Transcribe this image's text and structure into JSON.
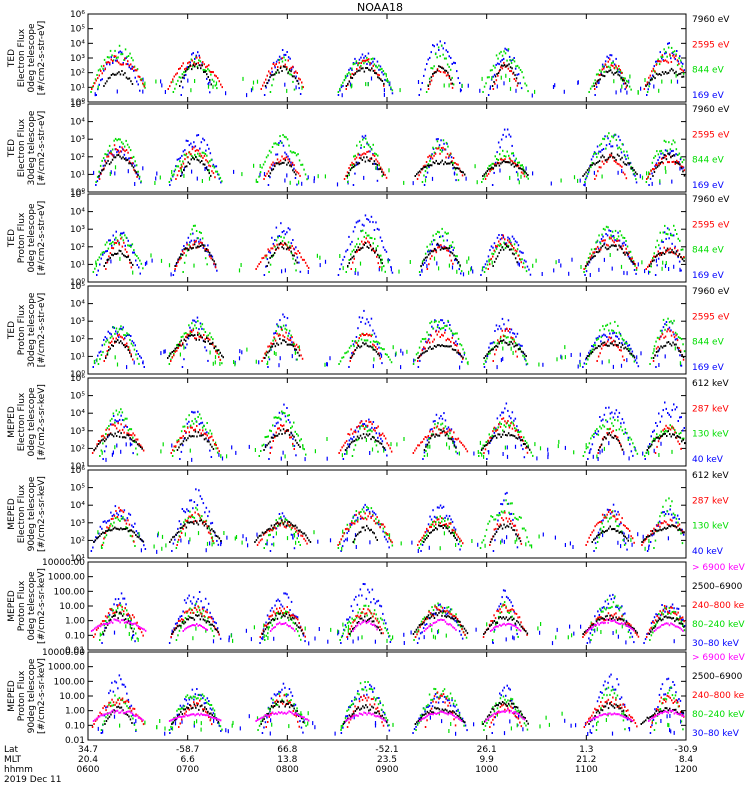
{
  "title": "NOAA18",
  "footer": {
    "row_labels": [
      "Lat",
      "MLT",
      "hhmm",
      "2019 Dec 11"
    ],
    "columns": [
      {
        "lat": "34.7",
        "mlt": "20.4",
        "hhmm": "0600"
      },
      {
        "lat": "-58.7",
        "mlt": "6.6",
        "hhmm": "0700"
      },
      {
        "lat": "66.8",
        "mlt": "13.8",
        "hhmm": "0800"
      },
      {
        "lat": "-52.1",
        "mlt": "23.5",
        "hhmm": "0900"
      },
      {
        "lat": "26.1",
        "mlt": "9.9",
        "hhmm": "1000"
      },
      {
        "lat": "1.3",
        "mlt": "21.2",
        "hhmm": "1100"
      },
      {
        "lat": "-30.9",
        "mlt": "8.4",
        "hhmm": "1200"
      }
    ]
  },
  "colors": {
    "blue": "#0000ff",
    "red": "#ff0000",
    "green": "#00dd00",
    "black": "#000000",
    "magenta": "#ff00ff"
  },
  "chart_data": [
    {
      "type": "scatter",
      "ylabel": [
        "TED",
        "Electron Flux",
        "0deg telescope",
        "[#/cm2-s-str-eV]"
      ],
      "log": true,
      "ylim_exp": [
        0,
        6
      ],
      "yticks": [
        "10⁰",
        "10¹",
        "10²",
        "10³",
        "10⁴",
        "10⁵",
        "10⁶"
      ],
      "legend": [
        {
          "label": "7960 eV",
          "color": "black"
        },
        {
          "label": "2595 eV",
          "color": "red"
        },
        {
          "label": "844 eV",
          "color": "green"
        },
        {
          "label": "169 eV",
          "color": "blue"
        }
      ]
    },
    {
      "type": "scatter",
      "ylabel": [
        "TED",
        "Electron Flux",
        "30deg telescope",
        "[#/cm2-s-str-eV]"
      ],
      "log": true,
      "ylim_exp": [
        0,
        5
      ],
      "yticks": [
        "10⁰",
        "10¹",
        "10²",
        "10³",
        "10⁴",
        "10⁵"
      ],
      "legend": [
        {
          "label": "7960 eV",
          "color": "black"
        },
        {
          "label": "2595 eV",
          "color": "red"
        },
        {
          "label": "844 eV",
          "color": "green"
        },
        {
          "label": "169 eV",
          "color": "blue"
        }
      ]
    },
    {
      "type": "scatter",
      "ylabel": [
        "TED",
        "Proton Flux",
        "0deg telescope",
        "[#/cm2-s-str-eV]"
      ],
      "log": true,
      "ylim_exp": [
        0,
        5
      ],
      "yticks": [
        "10⁰",
        "10¹",
        "10²",
        "10³",
        "10⁴",
        "10⁵"
      ],
      "legend": [
        {
          "label": "7960 eV",
          "color": "black"
        },
        {
          "label": "2595 eV",
          "color": "red"
        },
        {
          "label": "844 eV",
          "color": "green"
        },
        {
          "label": "169 eV",
          "color": "blue"
        }
      ]
    },
    {
      "type": "scatter",
      "ylabel": [
        "TED",
        "Proton Flux",
        "30deg telescope",
        "[#/cm2-s-str-eV]"
      ],
      "log": true,
      "ylim_exp": [
        0,
        5
      ],
      "yticks": [
        "10⁰",
        "10¹",
        "10²",
        "10³",
        "10⁴",
        "10⁵"
      ],
      "legend": [
        {
          "label": "7960 eV",
          "color": "black"
        },
        {
          "label": "2595 eV",
          "color": "red"
        },
        {
          "label": "844 eV",
          "color": "green"
        },
        {
          "label": "169 eV",
          "color": "blue"
        }
      ]
    },
    {
      "type": "scatter",
      "ylabel": [
        "MEPED",
        "Electron Flux",
        "0deg telescope",
        "[#/cm2-s-sr-keV]"
      ],
      "log": true,
      "ylim_exp": [
        1,
        6
      ],
      "yticks": [
        "10¹",
        "10²",
        "10³",
        "10⁴",
        "10⁵",
        "10⁶"
      ],
      "legend": [
        {
          "label": "612 keV",
          "color": "black"
        },
        {
          "label": "287 keV",
          "color": "red"
        },
        {
          "label": "130 keV",
          "color": "green"
        },
        {
          "label": "40 keV",
          "color": "blue"
        }
      ]
    },
    {
      "type": "scatter",
      "ylabel": [
        "MEPED",
        "Electron Flux",
        "90deg telescope",
        "[#/cm2-s-sr-keV]"
      ],
      "log": true,
      "ylim_exp": [
        1,
        6
      ],
      "yticks": [
        "10¹",
        "10²",
        "10³",
        "10⁴",
        "10⁵",
        "10⁶"
      ],
      "legend": [
        {
          "label": "612 keV",
          "color": "black"
        },
        {
          "label": "287 keV",
          "color": "red"
        },
        {
          "label": "130 keV",
          "color": "green"
        },
        {
          "label": "40 keV",
          "color": "blue"
        }
      ]
    },
    {
      "type": "scatter",
      "ylabel": [
        "MEPED",
        "Proton Flux",
        "0deg telescope",
        "[#/cm2-s-sr-keV]"
      ],
      "log": true,
      "ylim_exp": [
        -2,
        4
      ],
      "yticks": [
        "0.01",
        "0.10",
        "1.00",
        "10.00",
        "100.00",
        "1000.00",
        "10000.00"
      ],
      "legend": [
        {
          "label": "> 6900 keV",
          "color": "magenta"
        },
        {
          "label": "2500–6900",
          "color": "black"
        },
        {
          "label": "240–800 ke",
          "color": "red"
        },
        {
          "label": "80–240 keV",
          "color": "green"
        },
        {
          "label": "30–80 keV",
          "color": "blue"
        }
      ]
    },
    {
      "type": "scatter",
      "ylabel": [
        "MEPED",
        "Proton Flux",
        "90deg telescope",
        "[#/cm2-s-sr-keV]"
      ],
      "log": true,
      "ylim_exp": [
        -2,
        4
      ],
      "yticks": [
        "0.01",
        "0.10",
        "1.00",
        "10.00",
        "100.00",
        "1000.00",
        "10000.00"
      ],
      "legend": [
        {
          "label": "> 6900 keV",
          "color": "magenta"
        },
        {
          "label": "2500–6900",
          "color": "black"
        },
        {
          "label": "240–800 ke",
          "color": "red"
        },
        {
          "label": "80–240 keV",
          "color": "green"
        },
        {
          "label": "30–80 keV",
          "color": "blue"
        }
      ]
    }
  ]
}
